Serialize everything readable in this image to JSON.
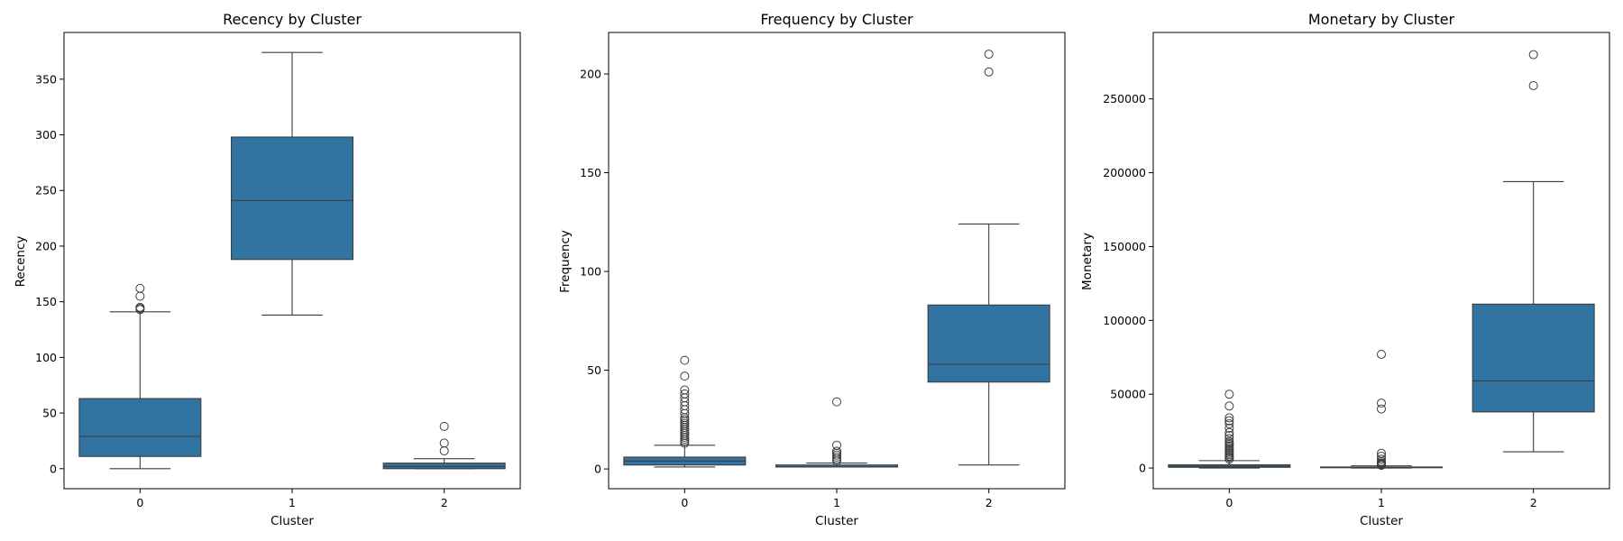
{
  "chart_data": [
    {
      "type": "box",
      "title": "Recency by Cluster",
      "xlabel": "Cluster",
      "ylabel": "Recency",
      "categories": [
        "0",
        "1",
        "2"
      ],
      "ylim": [
        -18,
        392
      ],
      "yticks": [
        0,
        50,
        100,
        150,
        200,
        250,
        300,
        350
      ],
      "ytick_labels": [
        "0",
        "50",
        "100",
        "150",
        "200",
        "250",
        "300",
        "350"
      ],
      "color": "#3274a1",
      "boxes": [
        {
          "category": "0",
          "whisker_low": 0,
          "q1": 11,
          "median": 29,
          "q3": 63,
          "whisker_high": 141,
          "outliers": [
            143,
            144,
            145,
            155,
            162
          ]
        },
        {
          "category": "1",
          "whisker_low": 138,
          "q1": 188,
          "median": 241,
          "q3": 298,
          "whisker_high": 374,
          "outliers": []
        },
        {
          "category": "2",
          "whisker_low": 0,
          "q1": 0,
          "median": 2,
          "q3": 5,
          "whisker_high": 9,
          "outliers": [
            16,
            23,
            38
          ]
        }
      ]
    },
    {
      "type": "box",
      "title": "Frequency by Cluster",
      "xlabel": "Cluster",
      "ylabel": "Frequency",
      "categories": [
        "0",
        "1",
        "2"
      ],
      "ylim": [
        -10,
        221
      ],
      "yticks": [
        0,
        50,
        100,
        150,
        200
      ],
      "ytick_labels": [
        "0",
        "50",
        "100",
        "150",
        "200"
      ],
      "color": "#3274a1",
      "boxes": [
        {
          "category": "0",
          "whisker_low": 1,
          "q1": 2,
          "median": 4,
          "q3": 6,
          "whisker_high": 12,
          "outliers": [
            13,
            14,
            15,
            16,
            17,
            18,
            19,
            20,
            21,
            22,
            23,
            24,
            25,
            26,
            28,
            30,
            32,
            34,
            36,
            38,
            40,
            47,
            55
          ]
        },
        {
          "category": "1",
          "whisker_low": 1,
          "q1": 1,
          "median": 1,
          "q3": 2,
          "whisker_high": 3,
          "outliers": [
            4,
            5,
            6,
            7,
            8,
            9,
            12,
            34
          ]
        },
        {
          "category": "2",
          "whisker_low": 2,
          "q1": 44,
          "median": 53,
          "q3": 83,
          "whisker_high": 124,
          "outliers": [
            201,
            210
          ]
        }
      ]
    },
    {
      "type": "box",
      "title": "Monetary by Cluster",
      "xlabel": "Cluster",
      "ylabel": "Monetary",
      "categories": [
        "0",
        "1",
        "2"
      ],
      "ylim": [
        -14000,
        295000
      ],
      "yticks": [
        0,
        50000,
        100000,
        150000,
        200000,
        250000
      ],
      "ytick_labels": [
        "0",
        "50000",
        "100000",
        "150000",
        "200000",
        "250000"
      ],
      "color": "#3274a1",
      "boxes": [
        {
          "category": "0",
          "whisker_low": 0,
          "q1": 500,
          "median": 1200,
          "q3": 2200,
          "whisker_high": 5000,
          "outliers": [
            6000,
            7000,
            8000,
            9000,
            10000,
            11000,
            12000,
            13000,
            14000,
            15000,
            16000,
            17000,
            18000,
            20000,
            22000,
            24000,
            27000,
            30000,
            32000,
            34000,
            42000,
            50000
          ]
        },
        {
          "category": "1",
          "whisker_low": 0,
          "q1": 200,
          "median": 400,
          "q3": 700,
          "whisker_high": 1500,
          "outliers": [
            1800,
            2200,
            2800,
            3500,
            4500,
            6000,
            8000,
            10000,
            40000,
            44000,
            77000
          ]
        },
        {
          "category": "2",
          "whisker_low": 11000,
          "q1": 38000,
          "median": 59000,
          "q3": 111000,
          "whisker_high": 194000,
          "outliers": [
            259000,
            280000
          ]
        }
      ]
    }
  ]
}
